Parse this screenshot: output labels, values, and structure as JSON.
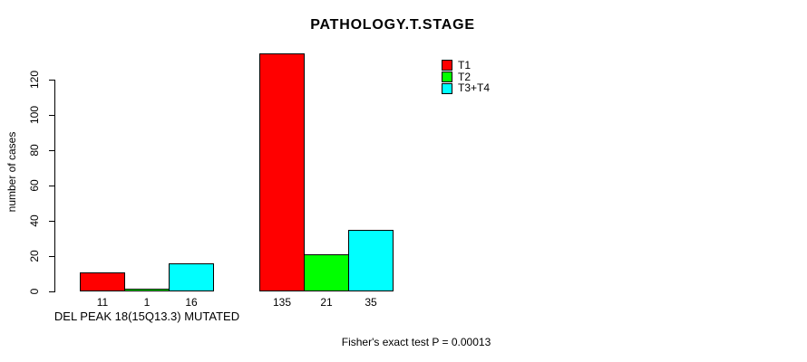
{
  "title": "PATHOLOGY.T.STAGE",
  "footer": "Fisher's exact test P = 0.00013",
  "y_axis": {
    "label": "number of cases",
    "ticks": [
      "0",
      "20",
      "40",
      "60",
      "80",
      "100",
      "120"
    ]
  },
  "legend": {
    "position": "top-right",
    "items": [
      {
        "label": "T1",
        "color": "#ff0000"
      },
      {
        "label": "T2",
        "color": "#00ff00"
      },
      {
        "label": "T3+T4",
        "color": "#00ffff"
      }
    ]
  },
  "chart_data": {
    "type": "bar",
    "title": "PATHOLOGY.T.STAGE",
    "xlabel": "",
    "ylabel": "number of cases",
    "ylim": [
      0,
      135
    ],
    "yticks": [
      0,
      20,
      40,
      60,
      80,
      100,
      120
    ],
    "grid": false,
    "legend_position": "top-right",
    "categories": [
      "DEL PEAK 18(15Q13.3) MUTATED",
      ""
    ],
    "series": [
      {
        "name": "T1",
        "color": "#ff0000",
        "values": [
          11,
          135
        ]
      },
      {
        "name": "T2",
        "color": "#00ff00",
        "values": [
          1,
          21
        ]
      },
      {
        "name": "T3+T4",
        "color": "#00ffff",
        "values": [
          16,
          35
        ]
      }
    ],
    "groups": [
      {
        "label": "DEL PEAK 18(15Q13.3) MUTATED",
        "values": [
          11,
          1,
          16
        ],
        "bar_labels": [
          "11",
          "1",
          "16"
        ]
      },
      {
        "label": "",
        "values": [
          135,
          21,
          35
        ],
        "bar_labels": [
          "135",
          "21",
          "35"
        ]
      }
    ],
    "annotation": "Fisher's exact test P = 0.00013"
  }
}
